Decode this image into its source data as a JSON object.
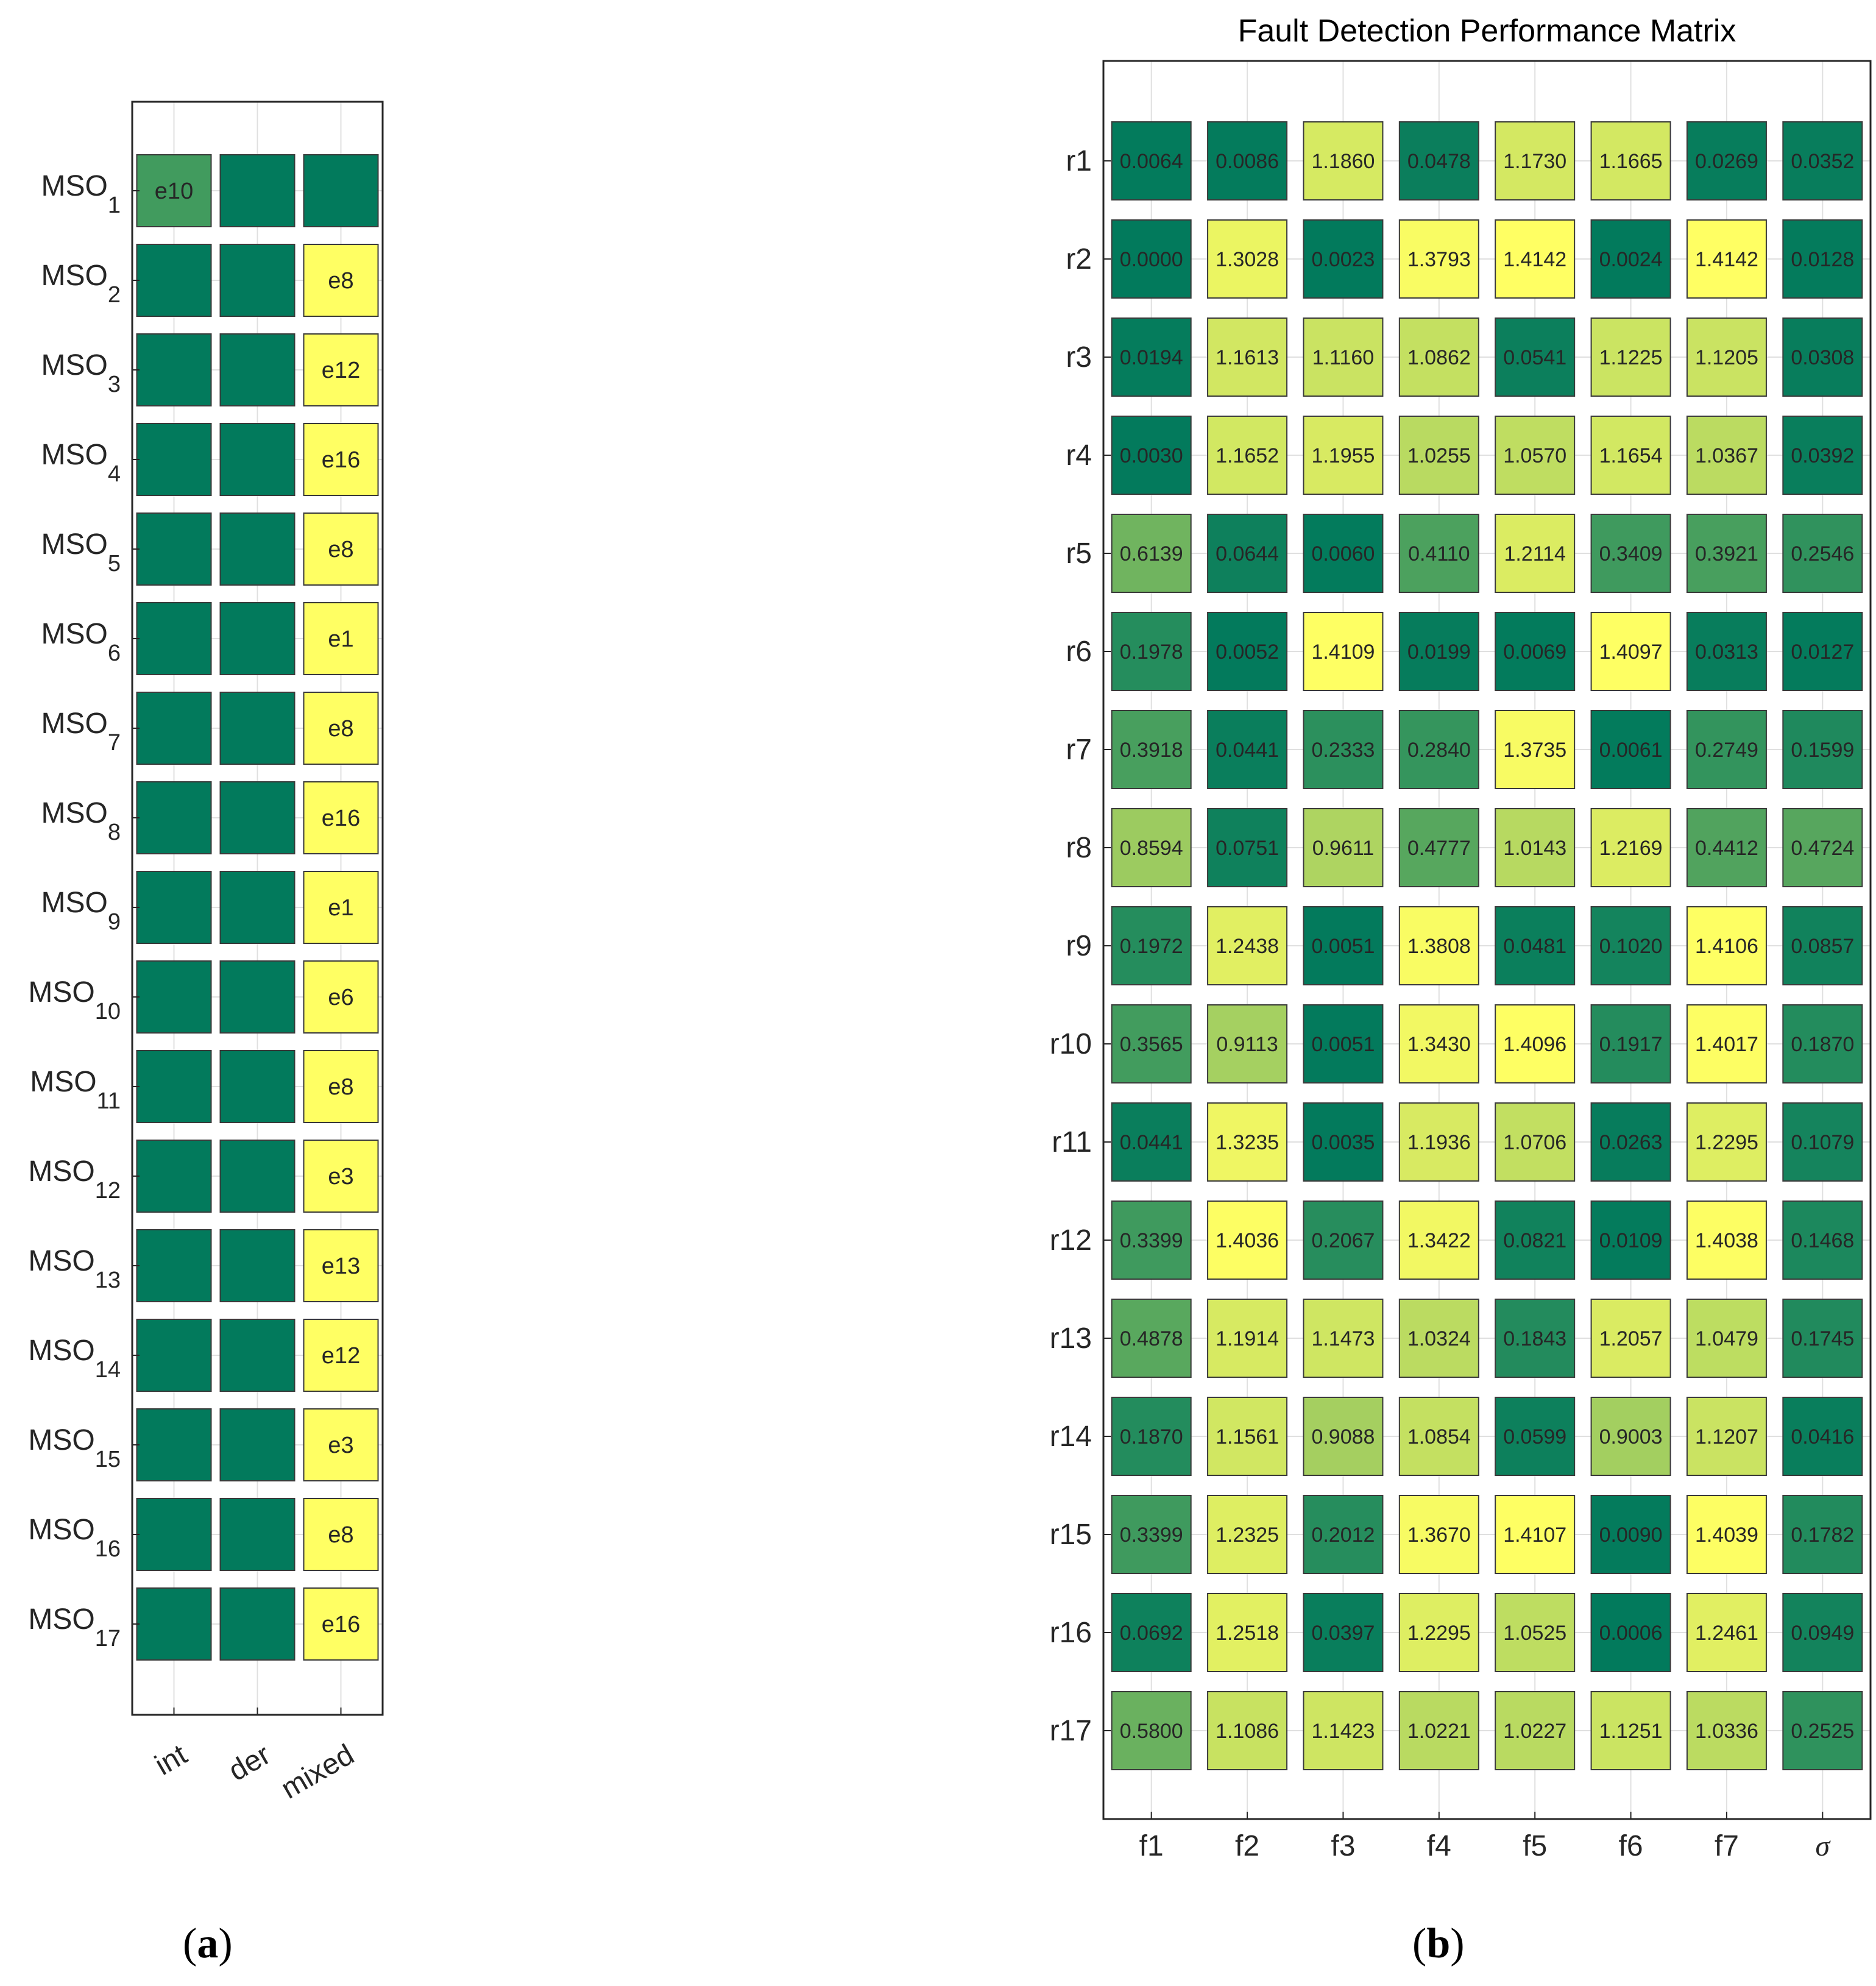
{
  "colors": {
    "low": "#027a5c",
    "high": "#ffff63",
    "cell_stroke": "#3a3a3a",
    "grid": "#e0e0e0",
    "axis": "#262626",
    "text": "#262626"
  },
  "captions": {
    "a": "a",
    "b": "b"
  },
  "chart_data": [
    {
      "type": "heatmap",
      "id": "a",
      "title": "",
      "rows": [
        "MSO1",
        "MSO2",
        "MSO3",
        "MSO4",
        "MSO5",
        "MSO6",
        "MSO7",
        "MSO8",
        "MSO9",
        "MSO10",
        "MSO11",
        "MSO12",
        "MSO13",
        "MSO14",
        "MSO15",
        "MSO16",
        "MSO17"
      ],
      "row_label_base": "MSO",
      "row_label_subscripts": [
        "1",
        "2",
        "3",
        "4",
        "5",
        "6",
        "7",
        "8",
        "9",
        "10",
        "11",
        "12",
        "13",
        "14",
        "15",
        "16",
        "17"
      ],
      "columns": [
        "int",
        "der",
        "mixed"
      ],
      "column_tick_rotation_deg": -30,
      "cell_levels": [
        [
          0.25,
          0,
          0
        ],
        [
          0,
          0,
          1
        ],
        [
          0,
          0,
          1
        ],
        [
          0,
          0,
          1
        ],
        [
          0,
          0,
          1
        ],
        [
          0,
          0,
          1
        ],
        [
          0,
          0,
          1
        ],
        [
          0,
          0,
          1
        ],
        [
          0,
          0,
          1
        ],
        [
          0,
          0,
          1
        ],
        [
          0,
          0,
          1
        ],
        [
          0,
          0,
          1
        ],
        [
          0,
          0,
          1
        ],
        [
          0,
          0,
          1
        ],
        [
          0,
          0,
          1
        ],
        [
          0,
          0,
          1
        ],
        [
          0,
          0,
          1
        ]
      ],
      "cell_labels": [
        [
          "e10",
          "",
          ""
        ],
        [
          "",
          "",
          "e8"
        ],
        [
          "",
          "",
          "e12"
        ],
        [
          "",
          "",
          "e16"
        ],
        [
          "",
          "",
          "e8"
        ],
        [
          "",
          "",
          "e1"
        ],
        [
          "",
          "",
          "e8"
        ],
        [
          "",
          "",
          "e16"
        ],
        [
          "",
          "",
          "e1"
        ],
        [
          "",
          "",
          "e6"
        ],
        [
          "",
          "",
          "e8"
        ],
        [
          "",
          "",
          "e3"
        ],
        [
          "",
          "",
          "e13"
        ],
        [
          "",
          "",
          "e12"
        ],
        [
          "",
          "",
          "e3"
        ],
        [
          "",
          "",
          "e8"
        ],
        [
          "",
          "",
          "e16"
        ]
      ],
      "grid": true
    },
    {
      "type": "heatmap",
      "id": "b",
      "title": "Fault Detection Performance Matrix",
      "rows": [
        "r1",
        "r2",
        "r3",
        "r4",
        "r5",
        "r6",
        "r7",
        "r8",
        "r9",
        "r10",
        "r11",
        "r12",
        "r13",
        "r14",
        "r15",
        "r16",
        "r17"
      ],
      "columns": [
        "f1",
        "f2",
        "f3",
        "f4",
        "f5",
        "f6",
        "f7",
        "σ"
      ],
      "values": [
        [
          "0.0064",
          "0.0086",
          "1.1860",
          "0.0478",
          "1.1730",
          "1.1665",
          "0.0269",
          "0.0352"
        ],
        [
          "0.0000",
          "1.3028",
          "0.0023",
          "1.3793",
          "1.4142",
          "0.0024",
          "1.4142",
          "0.0128"
        ],
        [
          "0.0194",
          "1.1613",
          "1.1160",
          "1.0862",
          "0.0541",
          "1.1225",
          "1.1205",
          "0.0308"
        ],
        [
          "0.0030",
          "1.1652",
          "1.1955",
          "1.0255",
          "1.0570",
          "1.1654",
          "1.0367",
          "0.0392"
        ],
        [
          "0.6139",
          "0.0644",
          "0.0060",
          "0.4110",
          "1.2114",
          "0.3409",
          "0.3921",
          "0.2546"
        ],
        [
          "0.1978",
          "0.0052",
          "1.4109",
          "0.0199",
          "0.0069",
          "1.4097",
          "0.0313",
          "0.0127"
        ],
        [
          "0.3918",
          "0.0441",
          "0.2333",
          "0.2840",
          "1.3735",
          "0.0061",
          "0.2749",
          "0.1599"
        ],
        [
          "0.8594",
          "0.0751",
          "0.9611",
          "0.4777",
          "1.0143",
          "1.2169",
          "0.4412",
          "0.4724"
        ],
        [
          "0.1972",
          "1.2438",
          "0.0051",
          "1.3808",
          "0.0481",
          "0.1020",
          "1.4106",
          "0.0857"
        ],
        [
          "0.3565",
          "0.9113",
          "0.0051",
          "1.3430",
          "1.4096",
          "0.1917",
          "1.4017",
          "0.1870"
        ],
        [
          "0.0441",
          "1.3235",
          "0.0035",
          "1.1936",
          "1.0706",
          "0.0263",
          "1.2295",
          "0.1079"
        ],
        [
          "0.3399",
          "1.4036",
          "0.2067",
          "1.3422",
          "0.0821",
          "0.0109",
          "1.4038",
          "0.1468"
        ],
        [
          "0.4878",
          "1.1914",
          "1.1473",
          "1.0324",
          "0.1843",
          "1.2057",
          "1.0479",
          "0.1745"
        ],
        [
          "0.1870",
          "1.1561",
          "0.9088",
          "1.0854",
          "0.0599",
          "0.9003",
          "1.1207",
          "0.0416"
        ],
        [
          "0.3399",
          "1.2325",
          "0.2012",
          "1.3670",
          "1.4107",
          "0.0090",
          "1.4039",
          "0.1782"
        ],
        [
          "0.0692",
          "1.2518",
          "0.0397",
          "1.2295",
          "1.0525",
          "0.0006",
          "1.2461",
          "0.0949"
        ],
        [
          "0.5800",
          "1.1086",
          "1.1423",
          "1.0221",
          "1.0227",
          "1.1251",
          "1.0336",
          "0.2525"
        ]
      ],
      "color_range": [
        0,
        1.4142
      ],
      "grid": true
    }
  ]
}
